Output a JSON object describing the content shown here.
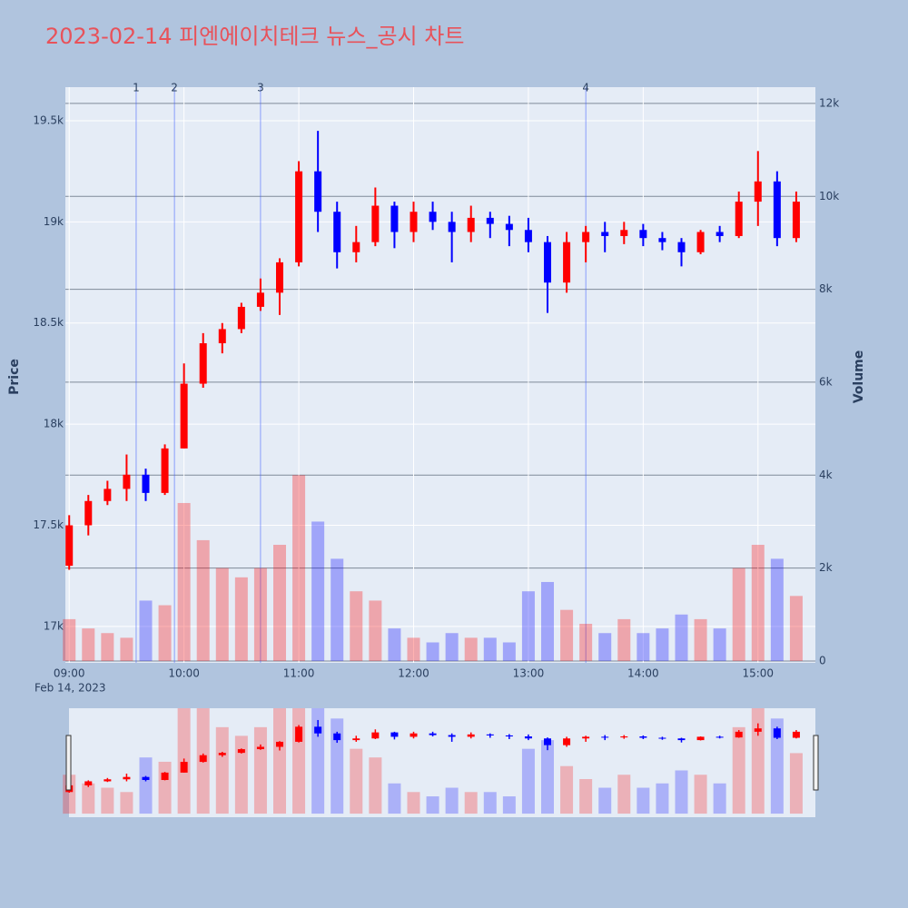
{
  "chart_data": {
    "type": "candlestick",
    "title": "2023-02-14 피엔에이치테크 뉴스_공시 차트",
    "x": [
      "09:00",
      "09:10",
      "09:20",
      "09:30",
      "09:40",
      "09:50",
      "10:00",
      "10:10",
      "10:20",
      "10:30",
      "10:40",
      "10:50",
      "11:00",
      "11:10",
      "11:20",
      "11:30",
      "11:40",
      "11:50",
      "12:00",
      "12:10",
      "12:20",
      "12:30",
      "12:40",
      "12:50",
      "13:00",
      "13:10",
      "13:20",
      "13:30",
      "13:40",
      "13:50",
      "14:00",
      "14:10",
      "14:20",
      "14:30",
      "14:40",
      "14:50",
      "15:00",
      "15:10",
      "15:20"
    ],
    "open": [
      17300,
      17500,
      17620,
      17680,
      17750,
      17660,
      17880,
      18200,
      18400,
      18470,
      18580,
      18650,
      18800,
      19250,
      19050,
      18850,
      18900,
      19080,
      18950,
      19050,
      19000,
      18950,
      19020,
      18990,
      18960,
      18900,
      18700,
      18900,
      18950,
      18930,
      18960,
      18920,
      18900,
      18850,
      18950,
      18930,
      19100,
      19200,
      18920
    ],
    "high": [
      17550,
      17650,
      17720,
      17850,
      17780,
      17900,
      18300,
      18450,
      18500,
      18600,
      18720,
      18820,
      19300,
      19450,
      19100,
      18980,
      19170,
      19100,
      19100,
      19100,
      19050,
      19080,
      19050,
      19030,
      19020,
      18930,
      18950,
      18980,
      19000,
      19000,
      18990,
      18950,
      18920,
      18960,
      18980,
      19150,
      19350,
      19250,
      19150
    ],
    "low": [
      17280,
      17450,
      17600,
      17620,
      17620,
      17650,
      17880,
      18180,
      18350,
      18450,
      18560,
      18540,
      18780,
      18950,
      18770,
      18800,
      18880,
      18870,
      18900,
      18960,
      18800,
      18900,
      18920,
      18880,
      18850,
      18550,
      18650,
      18800,
      18850,
      18890,
      18880,
      18860,
      18780,
      18840,
      18900,
      18920,
      18980,
      18880,
      18900
    ],
    "close": [
      17500,
      17620,
      17680,
      17750,
      17660,
      17880,
      18200,
      18400,
      18470,
      18580,
      18650,
      18800,
      19250,
      19050,
      18850,
      18900,
      19080,
      18950,
      19050,
      19000,
      18950,
      19020,
      18990,
      18960,
      18900,
      18700,
      18900,
      18950,
      18930,
      18960,
      18920,
      18900,
      18850,
      18950,
      18930,
      19100,
      19200,
      18920,
      19100
    ],
    "volume": [
      900,
      700,
      600,
      500,
      1300,
      1200,
      3400,
      2600,
      2000,
      1800,
      2000,
      2500,
      4000,
      3000,
      2200,
      1500,
      1300,
      700,
      500,
      400,
      600,
      500,
      500,
      400,
      1500,
      1700,
      1100,
      800,
      600,
      900,
      600,
      700,
      1000,
      900,
      700,
      2000,
      2500,
      2200,
      1400
    ],
    "increasing_color": "#ff0000",
    "decreasing_color": "#0000ff",
    "xlim": [
      "08:58",
      "15:30"
    ],
    "xticks": [
      "09:00",
      "10:00",
      "11:00",
      "12:00",
      "13:00",
      "14:00",
      "15:00"
    ],
    "x_date_label": "Feb 14, 2023",
    "ylabel": "Price",
    "y2label": "Volume",
    "ylim": [
      16820,
      19666
    ],
    "yticks": [
      {
        "value": 17000,
        "label": "17k"
      },
      {
        "value": 17500,
        "label": "17.5k"
      },
      {
        "value": 18000,
        "label": "18k"
      },
      {
        "value": 18500,
        "label": "18.5k"
      },
      {
        "value": 19000,
        "label": "19k"
      },
      {
        "value": 19500,
        "label": "19.5k"
      }
    ],
    "y2lim": [
      -40,
      12350
    ],
    "y2ticks": [
      0,
      {
        "value": 2000,
        "label": "2k"
      },
      {
        "value": 4000,
        "label": "4k"
      },
      {
        "value": 6000,
        "label": "6k"
      },
      {
        "value": 8000,
        "label": "8k"
      },
      {
        "value": 10000,
        "label": "10k"
      },
      {
        "value": 12000,
        "label": "12k"
      }
    ],
    "annotations": [
      {
        "x": "09:35",
        "text": "1"
      },
      {
        "x": "09:55",
        "text": "2"
      },
      {
        "x": "10:40",
        "text": "3"
      },
      {
        "x": "13:30",
        "text": "4"
      }
    ],
    "grid": true,
    "rangeslider": true
  }
}
